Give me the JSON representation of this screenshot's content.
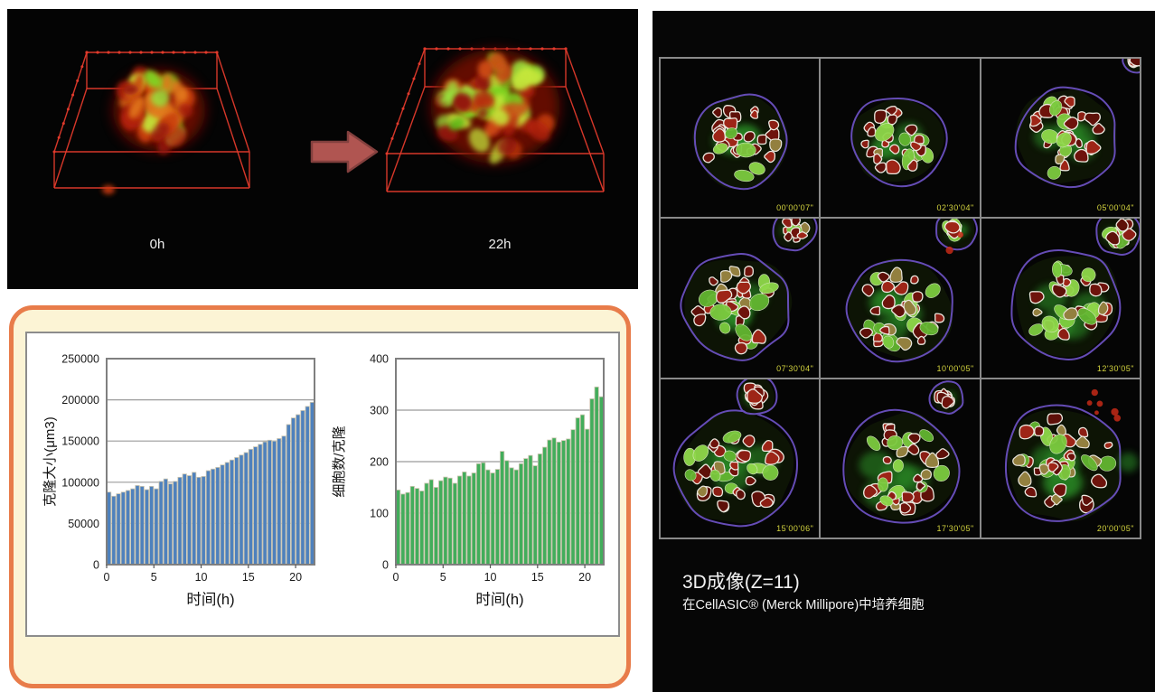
{
  "figure": {
    "top_panel": {
      "label_start": "0h",
      "label_end": "22h"
    },
    "right_panel": {
      "timestamps": [
        "00'00'07\"",
        "02'30'04\"",
        "05'00'04\"",
        "07'30'04\"",
        "10'00'05\"",
        "12'30'05\"",
        "15'00'06\"",
        "17'30'05\"",
        "20'00'05\""
      ],
      "caption_title": "3D成像(Z=11)",
      "caption_subtitle": "在CellASIC® (Merck Millipore)中培养细胞"
    }
  },
  "chart_data": [
    {
      "type": "bar",
      "title": "",
      "ylabel": "克隆大小(μm3)",
      "xlabel": "时间(h)",
      "ylim": [
        0,
        250000
      ],
      "yticks": [
        0,
        50000,
        100000,
        150000,
        200000,
        250000
      ],
      "xlim": [
        0,
        22
      ],
      "xticks": [
        0,
        5,
        10,
        15,
        20
      ],
      "x_start": 0,
      "x_step_h": 0.5,
      "bar_color": "#4E81BD",
      "bar_outline": "#CBC5AF",
      "grid_on": true,
      "values": [
        88000,
        83000,
        86000,
        88000,
        90000,
        92000,
        96000,
        95000,
        91000,
        95000,
        92000,
        101000,
        104000,
        98000,
        101000,
        106000,
        110000,
        108000,
        112000,
        106000,
        107000,
        114000,
        116000,
        118000,
        121000,
        124000,
        127000,
        130000,
        133000,
        136000,
        140000,
        143000,
        146000,
        149000,
        151000,
        150000,
        153000,
        156000,
        170000,
        178000,
        182000,
        187000,
        192000,
        197000
      ]
    },
    {
      "type": "bar",
      "title": "",
      "ylabel": "细胞数/克隆",
      "xlabel": "时间(h)",
      "ylim": [
        0,
        400
      ],
      "yticks": [
        0,
        100,
        200,
        300,
        400
      ],
      "xlim": [
        0,
        22
      ],
      "xticks": [
        0,
        5,
        10,
        15,
        20
      ],
      "x_start": 0,
      "x_step_h": 0.5,
      "bar_color": "#42AD5B",
      "bar_outline": "#CBC5AF",
      "grid_on": true,
      "values": [
        145,
        137,
        140,
        152,
        148,
        143,
        158,
        165,
        150,
        163,
        170,
        168,
        158,
        172,
        180,
        172,
        178,
        196,
        198,
        184,
        178,
        185,
        220,
        202,
        188,
        184,
        196,
        206,
        212,
        192,
        215,
        228,
        242,
        246,
        238,
        241,
        244,
        262,
        285,
        291,
        263,
        322,
        345,
        326
      ]
    }
  ],
  "colors": {
    "accent_orange": "#E87C4A",
    "cream_bg": "#FCF4D5",
    "panel_bg": "#060606",
    "blue_bar": "#4E81BD",
    "green_bar": "#42AD5B",
    "wireframe_red": "#E23A2C",
    "arrow_fill": "#B05551",
    "timestamp_yellow": "#D5D53F",
    "plot_border_gray": "#7F7F7F"
  }
}
